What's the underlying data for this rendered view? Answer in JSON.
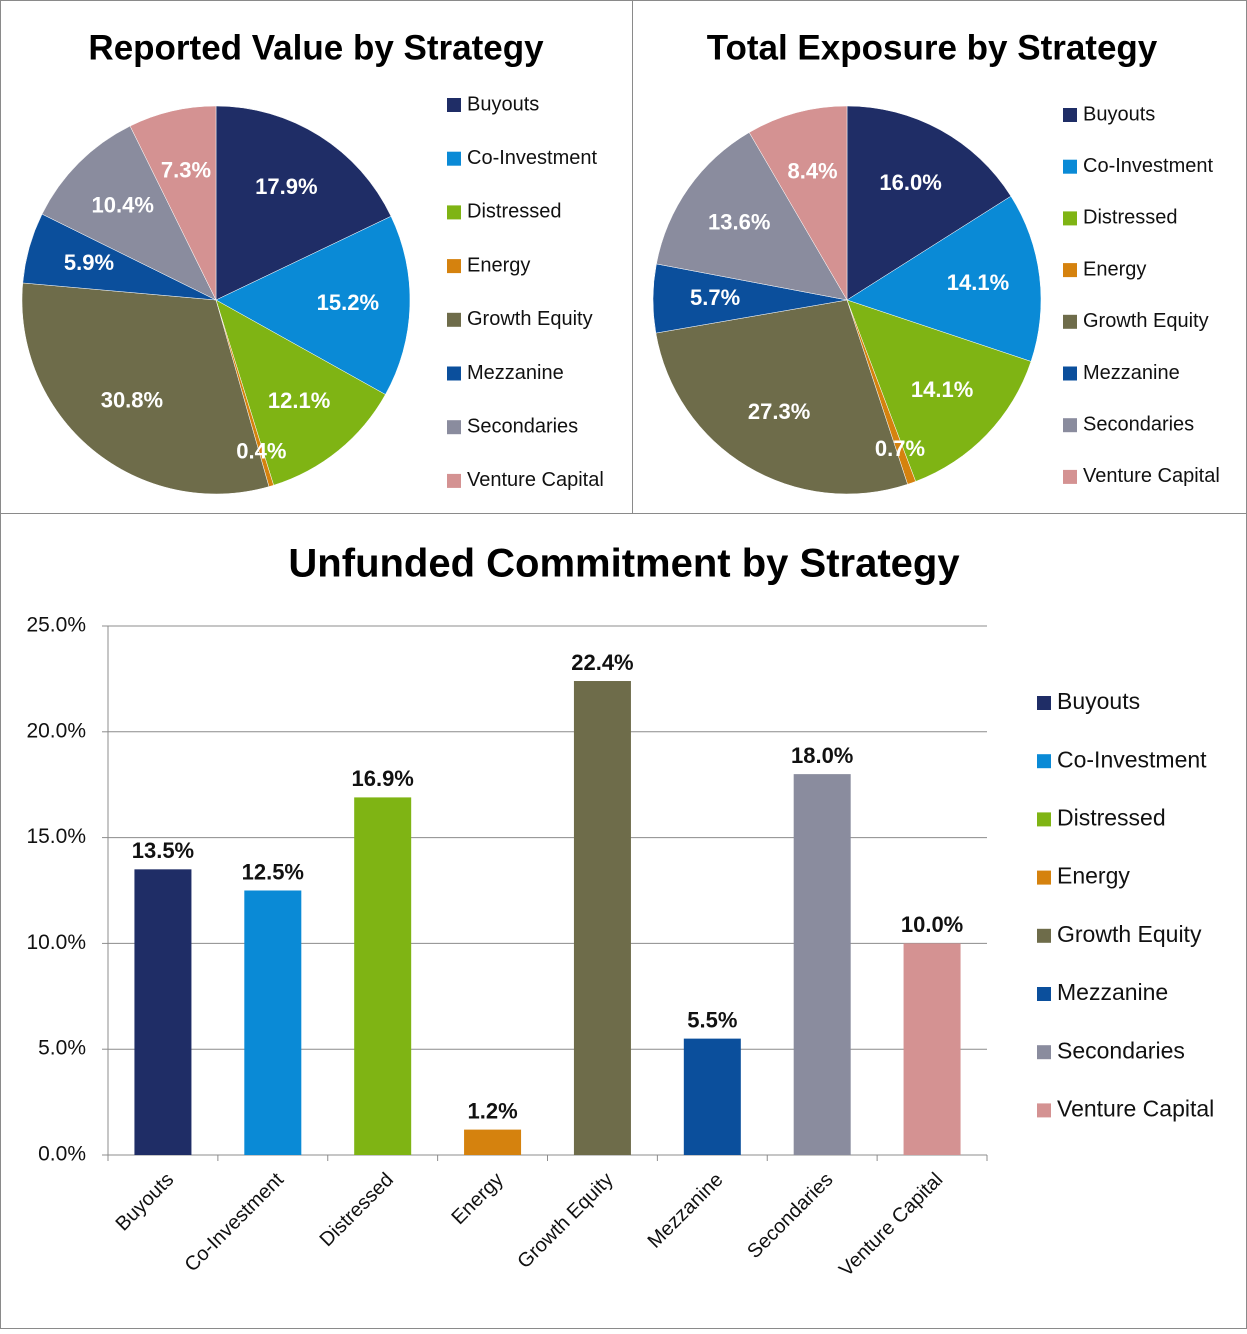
{
  "chart_data": [
    {
      "type": "pie",
      "title": "Reported Value by Strategy",
      "categories": [
        "Buyouts",
        "Co-Investment",
        "Distressed",
        "Energy",
        "Growth Equity",
        "Mezzanine",
        "Secondaries",
        "Venture Capital"
      ],
      "values": [
        17.9,
        15.2,
        12.1,
        0.4,
        30.8,
        5.9,
        10.4,
        7.3
      ],
      "value_labels": [
        "17.9%",
        "15.2%",
        "12.1%",
        "0.4%",
        "30.8%",
        "5.9%",
        "10.4%",
        "7.3%"
      ],
      "colors": [
        "#1f2d66",
        "#0a8ad6",
        "#7fb414",
        "#d5820e",
        "#6e6c4a",
        "#0b4f9c",
        "#8a8c9e",
        "#d49292"
      ],
      "legend": "right"
    },
    {
      "type": "pie",
      "title": "Total Exposure by Strategy",
      "categories": [
        "Buyouts",
        "Co-Investment",
        "Distressed",
        "Energy",
        "Growth Equity",
        "Mezzanine",
        "Secondaries",
        "Venture Capital"
      ],
      "values": [
        16.0,
        14.1,
        14.1,
        0.7,
        27.3,
        5.7,
        13.6,
        8.4
      ],
      "value_labels": [
        "16.0%",
        "14.1%",
        "14.1%",
        "0.7%",
        "27.3%",
        "5.7%",
        "13.6%",
        "8.4%"
      ],
      "colors": [
        "#1f2d66",
        "#0a8ad6",
        "#7fb414",
        "#d5820e",
        "#6e6c4a",
        "#0b4f9c",
        "#8a8c9e",
        "#d49292"
      ],
      "legend": "right"
    },
    {
      "type": "bar",
      "title": "Unfunded Commitment by Strategy",
      "categories": [
        "Buyouts",
        "Co-Investment",
        "Distressed",
        "Energy",
        "Growth Equity",
        "Mezzanine",
        "Secondaries",
        "Venture Capital"
      ],
      "values": [
        13.5,
        12.5,
        16.9,
        1.2,
        22.4,
        5.5,
        18.0,
        10.0
      ],
      "value_labels": [
        "13.5%",
        "12.5%",
        "16.9%",
        "1.2%",
        "22.4%",
        "5.5%",
        "18.0%",
        "10.0%"
      ],
      "colors": [
        "#1f2d66",
        "#0a8ad6",
        "#7fb414",
        "#d5820e",
        "#6e6c4a",
        "#0b4f9c",
        "#8a8c9e",
        "#d49292"
      ],
      "ylim": [
        0,
        25
      ],
      "yticks": [
        {
          "value": 0,
          "label": "0.0%"
        },
        {
          "value": 5,
          "label": "5.0%"
        },
        {
          "value": 10,
          "label": "10.0%"
        },
        {
          "value": 15,
          "label": "15.0%"
        },
        {
          "value": 20,
          "label": "20.0%"
        },
        {
          "value": 25,
          "label": "25.0%"
        }
      ],
      "grid": true,
      "legend": "right"
    }
  ]
}
